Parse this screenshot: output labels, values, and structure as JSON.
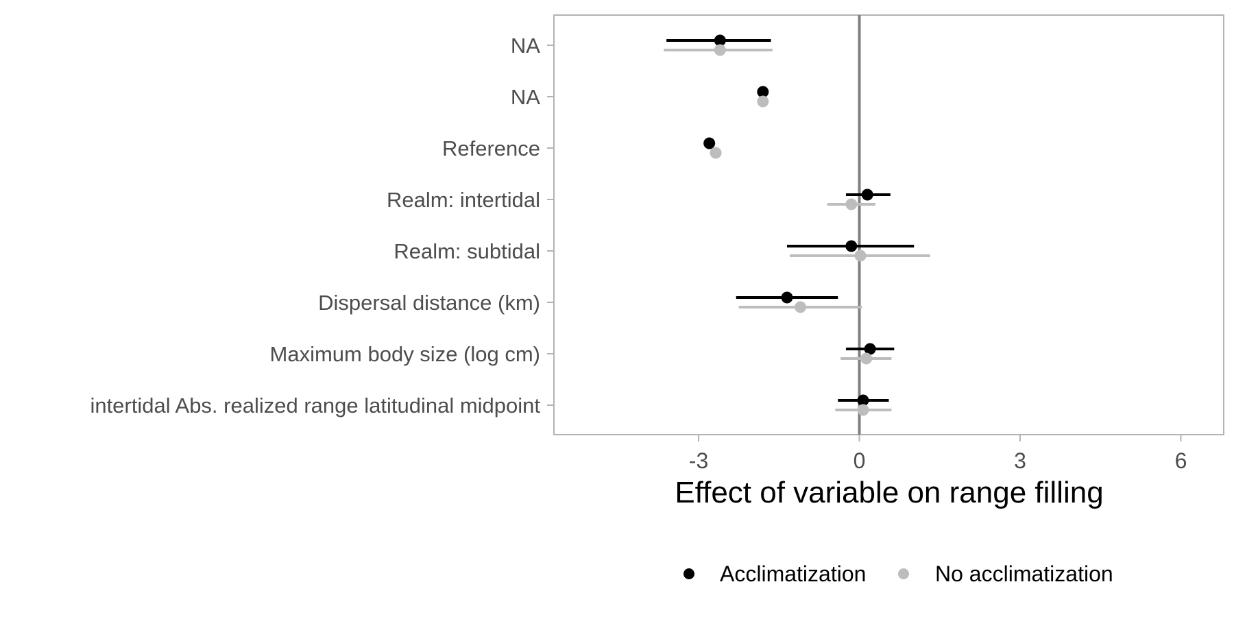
{
  "chart_data": {
    "type": "scatter",
    "subtype": "forest-plot",
    "title": "",
    "xlabel": "Effect of variable on range filling",
    "ylabel": "",
    "xlim": [
      -5.7,
      6.8
    ],
    "xticks": [
      -3,
      0,
      3,
      6
    ],
    "xtick_labels": [
      "-3",
      "0",
      "3",
      "6"
    ],
    "reference_line_x": 0,
    "grid": false,
    "legend_position": "bottom",
    "categories": [
      "NA",
      "NA",
      "Reference",
      "Realm: intertidal",
      "Realm: subtidal",
      "Dispersal distance (km)",
      "Maximum body size (log cm)",
      "intertidal Abs. realized range latitudinal midpoint"
    ],
    "series": [
      {
        "name": "Acclimatization",
        "color": "#000000",
        "estimate": [
          -2.6,
          -1.8,
          -2.8,
          0.15,
          -0.15,
          -1.35,
          0.2,
          0.07
        ],
        "lower": [
          -3.6,
          null,
          null,
          -0.25,
          -1.35,
          -2.3,
          -0.25,
          -0.4
        ],
        "upper": [
          -1.65,
          null,
          null,
          0.58,
          1.02,
          -0.4,
          0.65,
          0.55
        ]
      },
      {
        "name": "No acclimatization",
        "color": "#bdbdbd",
        "estimate": [
          -2.6,
          -1.8,
          -2.68,
          -0.15,
          0.02,
          -1.1,
          0.13,
          0.07
        ],
        "lower": [
          -3.65,
          null,
          null,
          -0.6,
          -1.3,
          -2.25,
          -0.35,
          -0.45
        ],
        "upper": [
          -1.62,
          null,
          null,
          0.3,
          1.32,
          0.05,
          0.6,
          0.6
        ]
      }
    ]
  }
}
